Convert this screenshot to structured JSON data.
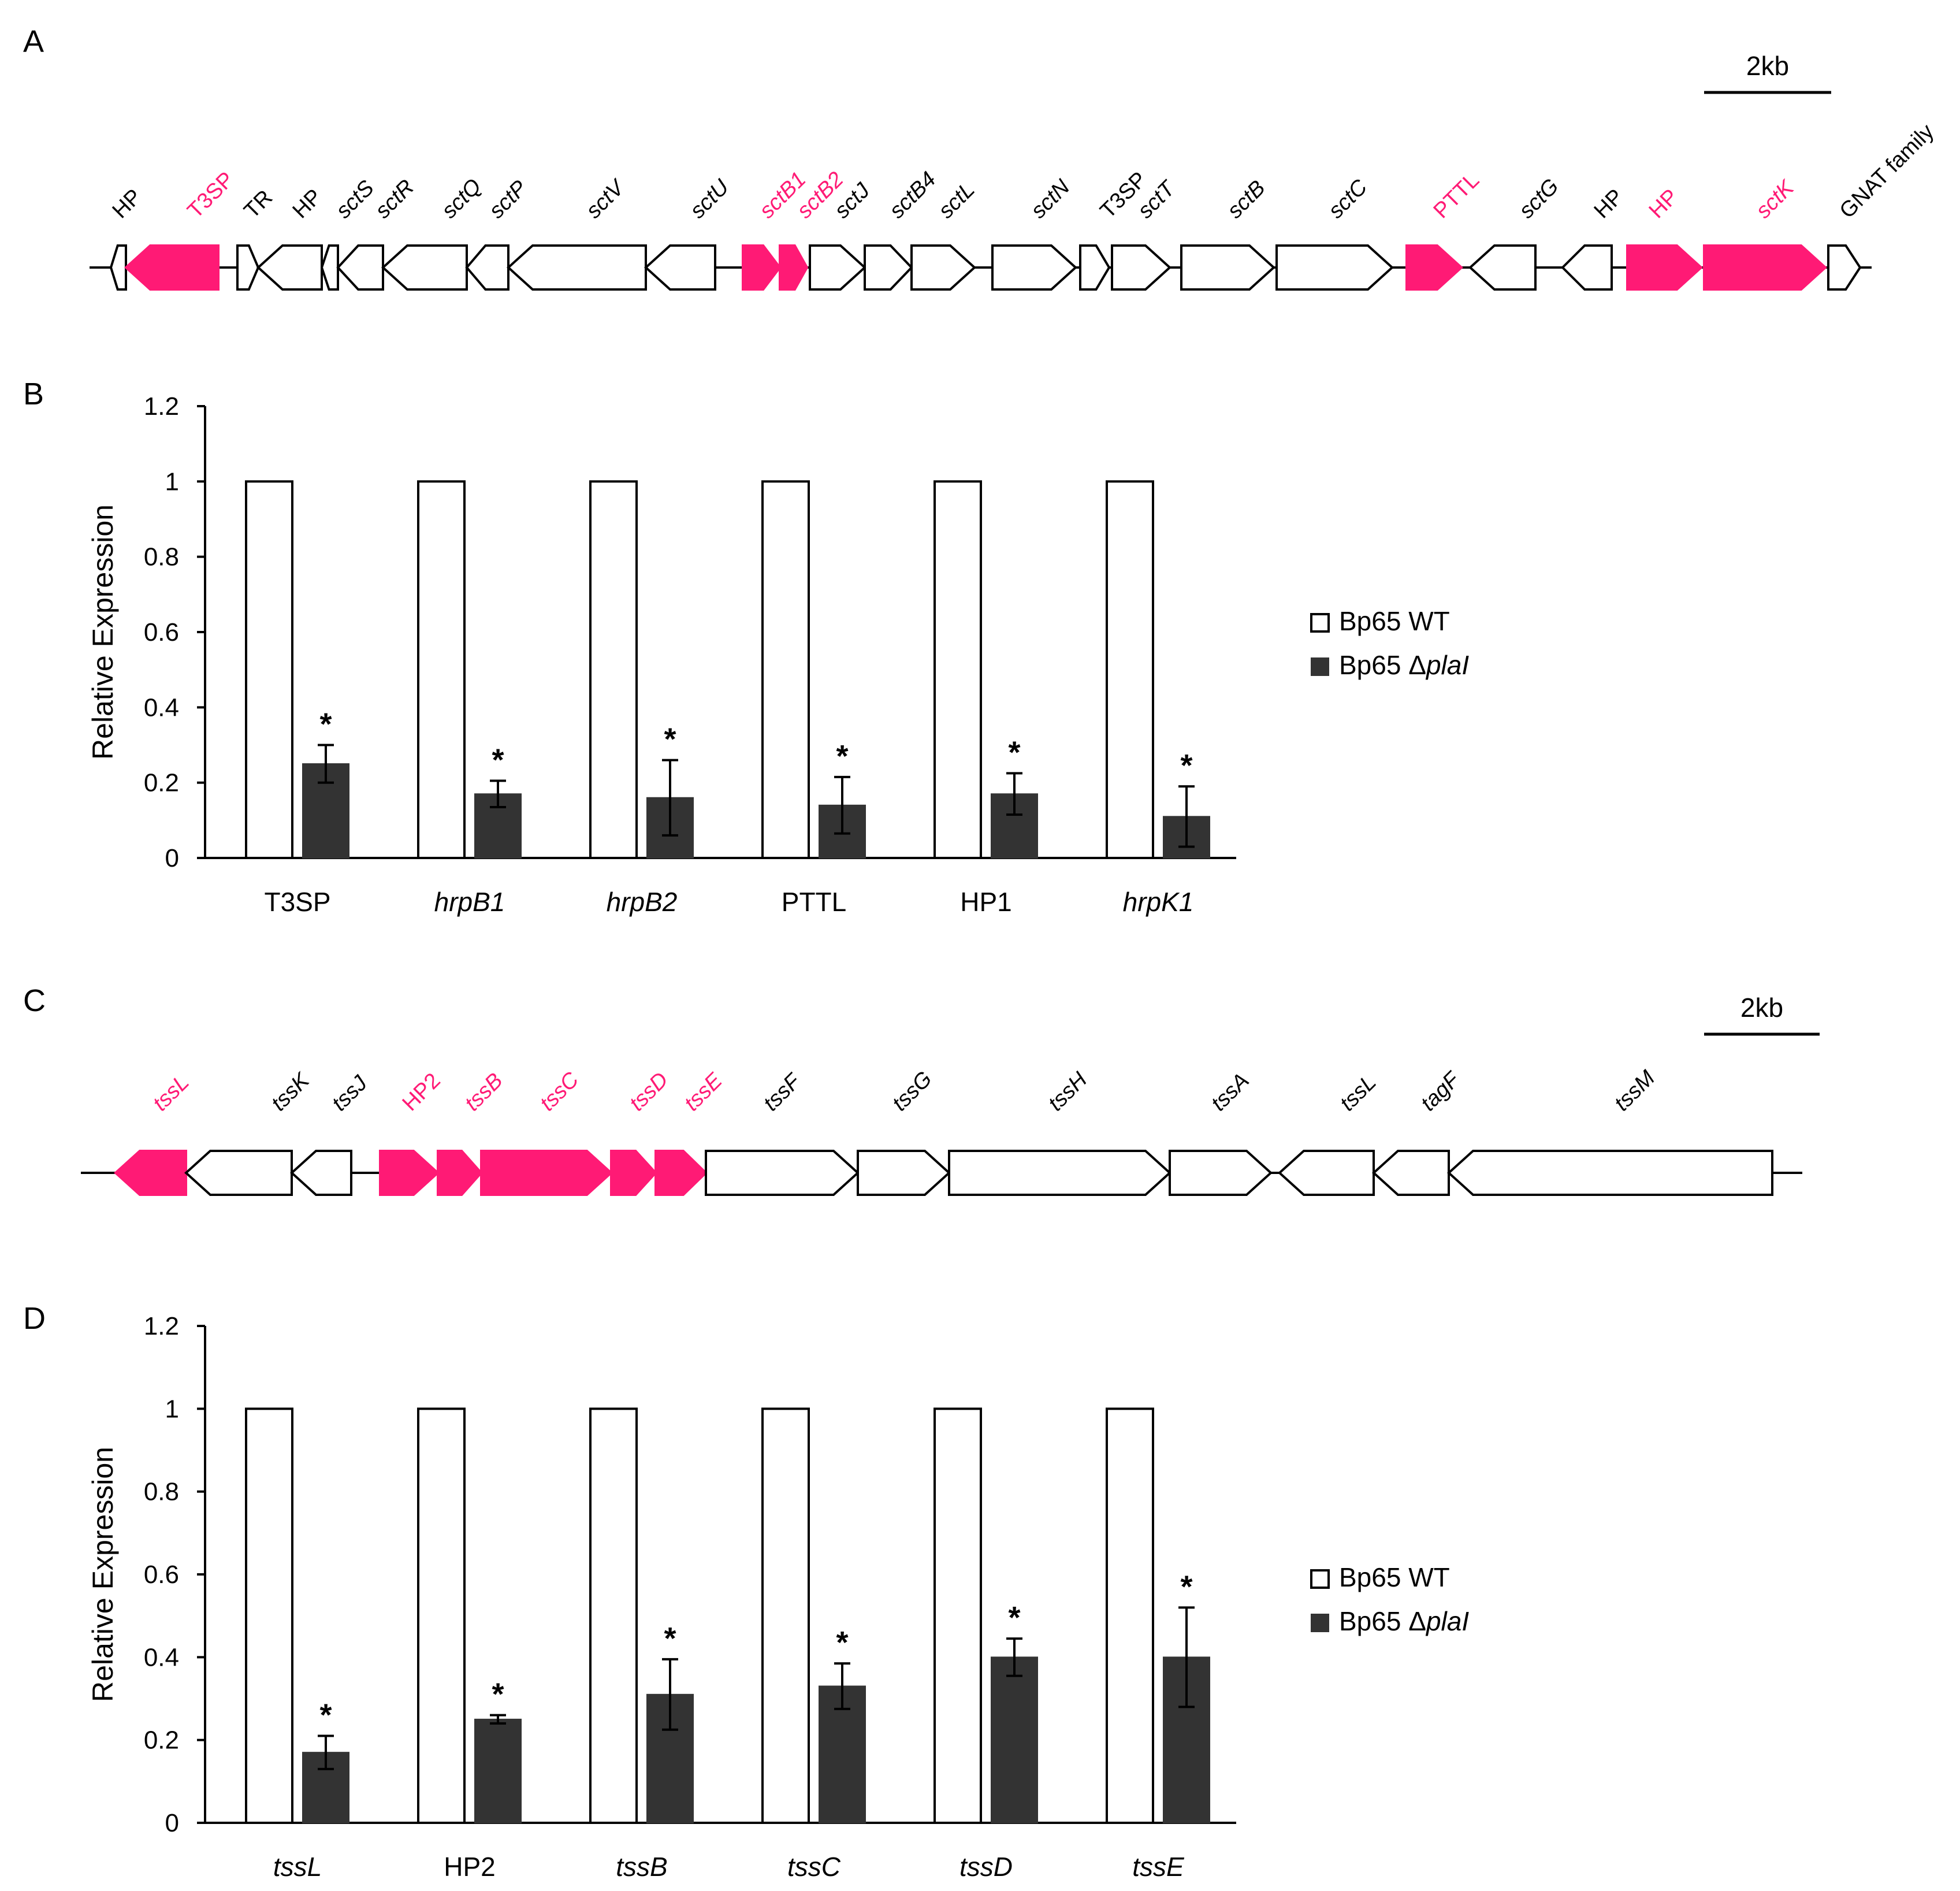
{
  "panels": {
    "a": "A",
    "b": "B",
    "c": "C",
    "d": "D"
  },
  "colors": {
    "highlight": "#ff1a75",
    "mutant": "#333333",
    "wt": "#ffffff",
    "outline": "#000000"
  },
  "operon_a": {
    "scale_label": "2kb",
    "genes": [
      {
        "label": "HP",
        "italic": false,
        "color": "black",
        "hl": false,
        "dir": "L"
      },
      {
        "label": "T3SP",
        "italic": false,
        "color": "pink",
        "hl": true,
        "dir": "L"
      },
      {
        "label": "TR",
        "italic": false,
        "color": "black",
        "hl": false,
        "dir": "R"
      },
      {
        "label": "HP",
        "italic": false,
        "color": "black",
        "hl": false,
        "dir": "L"
      },
      {
        "label": "sctS",
        "italic": true,
        "color": "black",
        "hl": false,
        "dir": "L"
      },
      {
        "label": "sctR",
        "italic": true,
        "color": "black",
        "hl": false,
        "dir": "L"
      },
      {
        "label": "sctQ",
        "italic": true,
        "color": "black",
        "hl": false,
        "dir": "L"
      },
      {
        "label": "sctP",
        "italic": true,
        "color": "black",
        "hl": false,
        "dir": "L"
      },
      {
        "label": "sctV",
        "italic": true,
        "color": "black",
        "hl": false,
        "dir": "L"
      },
      {
        "label": "sctU",
        "italic": true,
        "color": "black",
        "hl": false,
        "dir": "L"
      },
      {
        "label": "sctB1",
        "italic": true,
        "color": "pink",
        "hl": true,
        "dir": "R"
      },
      {
        "label": "sctB2",
        "italic": true,
        "color": "pink",
        "hl": true,
        "dir": "R"
      },
      {
        "label": "sctJ",
        "italic": true,
        "color": "black",
        "hl": false,
        "dir": "R"
      },
      {
        "label": "sctB4",
        "italic": true,
        "color": "black",
        "hl": false,
        "dir": "R"
      },
      {
        "label": "sctL",
        "italic": true,
        "color": "black",
        "hl": false,
        "dir": "R"
      },
      {
        "label": "sctN",
        "italic": true,
        "color": "black",
        "hl": false,
        "dir": "R"
      },
      {
        "label": "T3SP",
        "italic": false,
        "color": "black",
        "hl": false,
        "dir": "R"
      },
      {
        "label": "sctT",
        "italic": true,
        "color": "black",
        "hl": false,
        "dir": "R"
      },
      {
        "label": "sctB",
        "italic": true,
        "color": "black",
        "hl": false,
        "dir": "R"
      },
      {
        "label": "sctC",
        "italic": true,
        "color": "black",
        "hl": false,
        "dir": "R"
      },
      {
        "label": "PTTL",
        "italic": false,
        "color": "pink",
        "hl": true,
        "dir": "R"
      },
      {
        "label": "sctG",
        "italic": true,
        "color": "black",
        "hl": false,
        "dir": "L"
      },
      {
        "label": "HP",
        "italic": false,
        "color": "black",
        "hl": false,
        "dir": "L"
      },
      {
        "label": "HP",
        "italic": false,
        "color": "pink",
        "hl": true,
        "dir": "R"
      },
      {
        "label": "sctK",
        "italic": true,
        "color": "pink",
        "hl": true,
        "dir": "R"
      },
      {
        "label": "GNAT family",
        "italic": false,
        "color": "black",
        "hl": false,
        "dir": "R"
      }
    ]
  },
  "operon_c": {
    "scale_label": "2kb",
    "genes": [
      {
        "label": "tssL",
        "italic": true,
        "color": "pink",
        "hl": true,
        "dir": "L"
      },
      {
        "label": "tssK",
        "italic": true,
        "color": "black",
        "hl": false,
        "dir": "L"
      },
      {
        "label": "tssJ",
        "italic": true,
        "color": "black",
        "hl": false,
        "dir": "L"
      },
      {
        "label": "HP2",
        "italic": false,
        "color": "pink",
        "hl": true,
        "dir": "R"
      },
      {
        "label": "tssB",
        "italic": true,
        "color": "pink",
        "hl": true,
        "dir": "R"
      },
      {
        "label": "tssC",
        "italic": true,
        "color": "pink",
        "hl": true,
        "dir": "R"
      },
      {
        "label": "tssD",
        "italic": true,
        "color": "pink",
        "hl": true,
        "dir": "R"
      },
      {
        "label": "tssE",
        "italic": true,
        "color": "pink",
        "hl": true,
        "dir": "R"
      },
      {
        "label": "tssF",
        "italic": true,
        "color": "black",
        "hl": false,
        "dir": "R"
      },
      {
        "label": "tssG",
        "italic": true,
        "color": "black",
        "hl": false,
        "dir": "R"
      },
      {
        "label": "tssH",
        "italic": true,
        "color": "black",
        "hl": false,
        "dir": "R"
      },
      {
        "label": "tssA",
        "italic": true,
        "color": "black",
        "hl": false,
        "dir": "R"
      },
      {
        "label": "tssL",
        "italic": true,
        "color": "black",
        "hl": false,
        "dir": "L"
      },
      {
        "label": "tagF",
        "italic": true,
        "color": "black",
        "hl": false,
        "dir": "L"
      },
      {
        "label": "tssM",
        "italic": true,
        "color": "black",
        "hl": false,
        "dir": "L"
      }
    ]
  },
  "chart_data": [
    {
      "type": "bar",
      "panel": "B",
      "ylabel": "Relative Expression",
      "ylim": [
        0,
        1.2
      ],
      "yticks": [
        "0",
        "0.2",
        "0.4",
        "0.6",
        "0.8",
        "1",
        "1.2"
      ],
      "categories": [
        "T3SP",
        "hrpB1",
        "hrpB2",
        "PTTL",
        "HP1",
        "hrpK1"
      ],
      "italic_categories": [
        false,
        true,
        true,
        false,
        false,
        true
      ],
      "series": [
        {
          "name": "Bp65 WT",
          "values": [
            1,
            1,
            1,
            1,
            1,
            1
          ]
        },
        {
          "name": "Bp65 ΔplaI",
          "values": [
            0.25,
            0.17,
            0.16,
            0.14,
            0.17,
            0.11
          ],
          "errors": [
            0.05,
            0.035,
            0.1,
            0.075,
            0.055,
            0.08
          ]
        }
      ],
      "significance": [
        "*",
        "*",
        "*",
        "*",
        "*",
        "*"
      ],
      "legend": {
        "wt_label": "Bp65 WT",
        "mut_prefix": "Bp65 Δ",
        "mut_italic": "plaI"
      }
    },
    {
      "type": "bar",
      "panel": "D",
      "ylabel": "Relative Expression",
      "ylim": [
        0,
        1.2
      ],
      "yticks": [
        "0",
        "0.2",
        "0.4",
        "0.6",
        "0.8",
        "1",
        "1.2"
      ],
      "categories": [
        "tssL",
        "HP2",
        "tssB",
        "tssC",
        "tssD",
        "tssE"
      ],
      "italic_categories": [
        true,
        false,
        true,
        true,
        true,
        true
      ],
      "series": [
        {
          "name": "Bp65 WT",
          "values": [
            1,
            1,
            1,
            1,
            1,
            1
          ]
        },
        {
          "name": "Bp65 ΔplaI",
          "values": [
            0.17,
            0.25,
            0.31,
            0.33,
            0.4,
            0.4
          ],
          "errors": [
            0.04,
            0.01,
            0.085,
            0.055,
            0.045,
            0.12
          ]
        }
      ],
      "significance": [
        "*",
        "*",
        "*",
        "*",
        "*",
        "*"
      ],
      "legend": {
        "wt_label": "Bp65 WT",
        "mut_prefix": "Bp65 Δ",
        "mut_italic": "plaI"
      }
    }
  ]
}
